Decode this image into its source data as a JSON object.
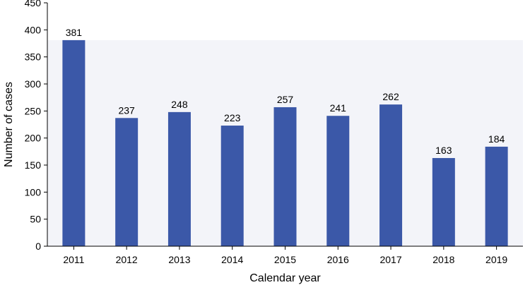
{
  "chart_data": {
    "type": "bar",
    "categories": [
      "2011",
      "2012",
      "2013",
      "2014",
      "2015",
      "2016",
      "2017",
      "2018",
      "2019"
    ],
    "values": [
      381,
      237,
      248,
      223,
      257,
      241,
      262,
      163,
      184
    ],
    "title": "",
    "xlabel": "Calendar year",
    "ylabel": "Number of cases",
    "ylim": [
      0,
      450
    ],
    "yticks": [
      "0",
      "50",
      "100",
      "150",
      "200",
      "250",
      "300",
      "350",
      "400",
      "450"
    ],
    "grid": false,
    "colors": {
      "bar": "#3b58a8",
      "plot_background": "#f3f4f9",
      "axis": "#000000"
    }
  }
}
